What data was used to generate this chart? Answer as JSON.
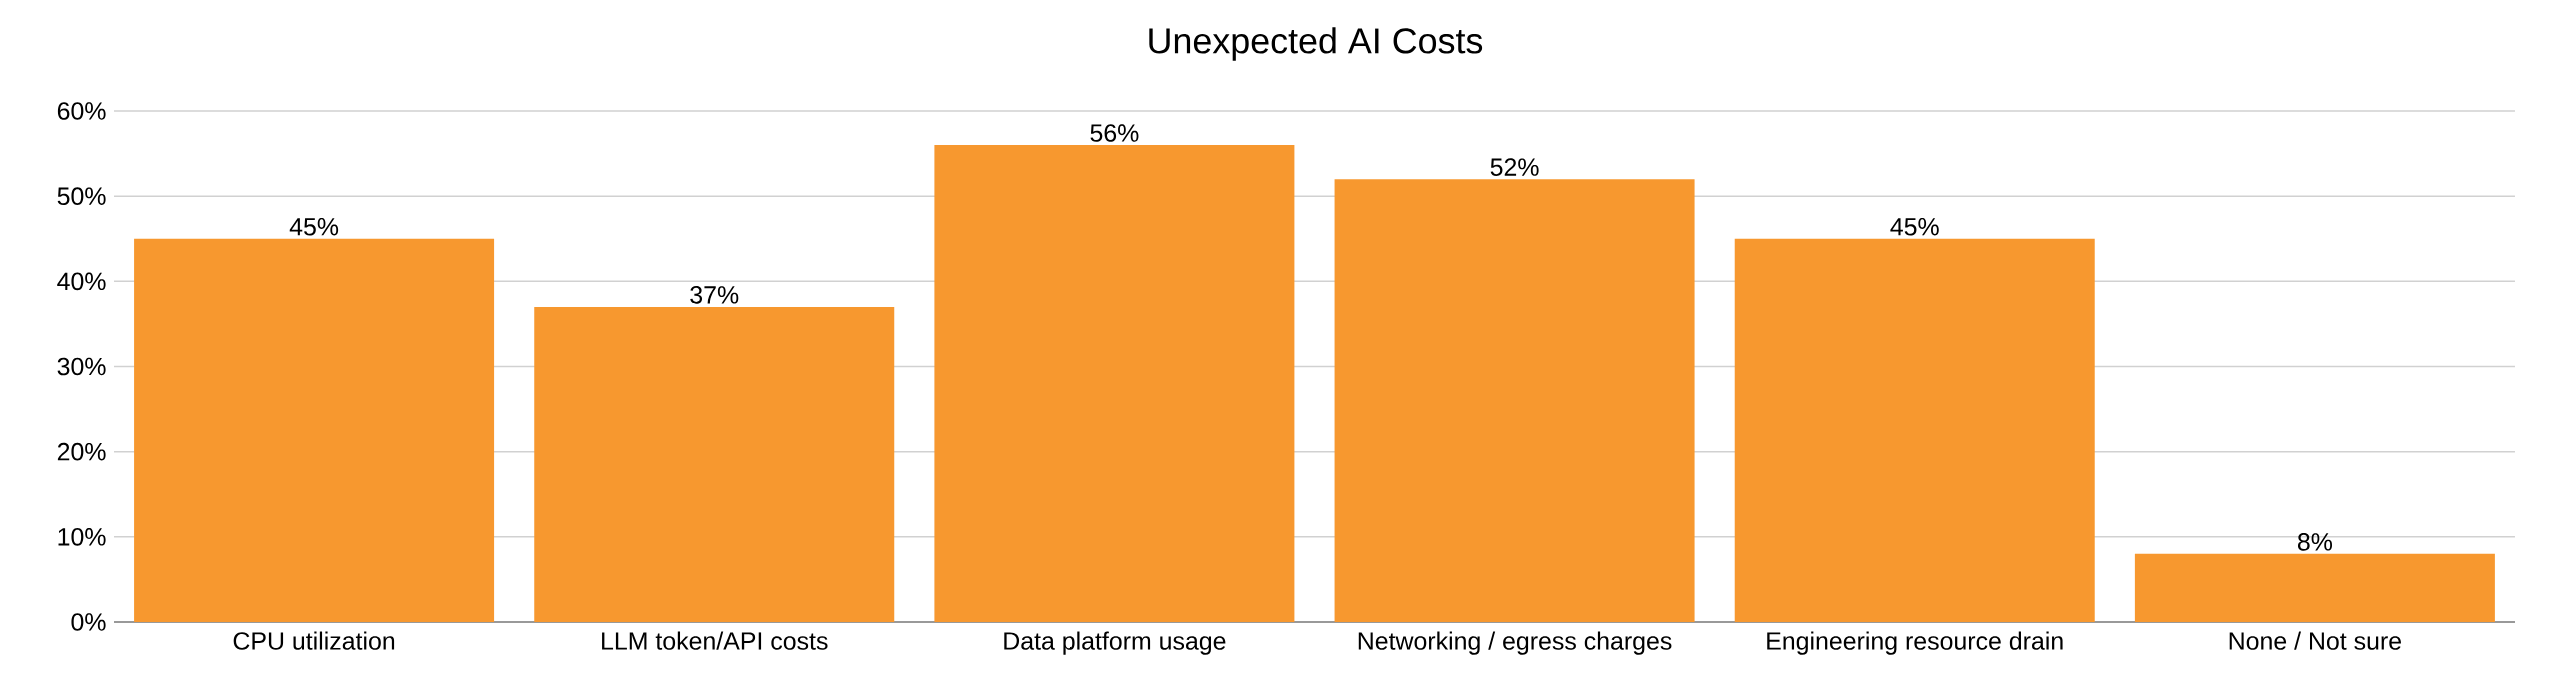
{
  "chart_data": {
    "type": "bar",
    "title": "Unexpected AI Costs",
    "categories": [
      "CPU utilization",
      "LLM token/API costs",
      "Data platform usage",
      "Networking / egress charges",
      "Engineering resource drain",
      "None / Not sure"
    ],
    "values": [
      45,
      37,
      56,
      52,
      45,
      8
    ],
    "value_labels": [
      "45%",
      "37%",
      "56%",
      "52%",
      "45%",
      "8%"
    ],
    "color": "#f7982f",
    "ylim": [
      0,
      60
    ],
    "yticks": [
      {
        "value": 0,
        "label": "0%"
      },
      {
        "value": 10,
        "label": "10%"
      },
      {
        "value": 20,
        "label": "20%"
      },
      {
        "value": 30,
        "label": "30%"
      },
      {
        "value": 40,
        "label": "40%"
      },
      {
        "value": 50,
        "label": "50%"
      },
      {
        "value": 60,
        "label": "60%"
      }
    ],
    "grid": "y"
  }
}
